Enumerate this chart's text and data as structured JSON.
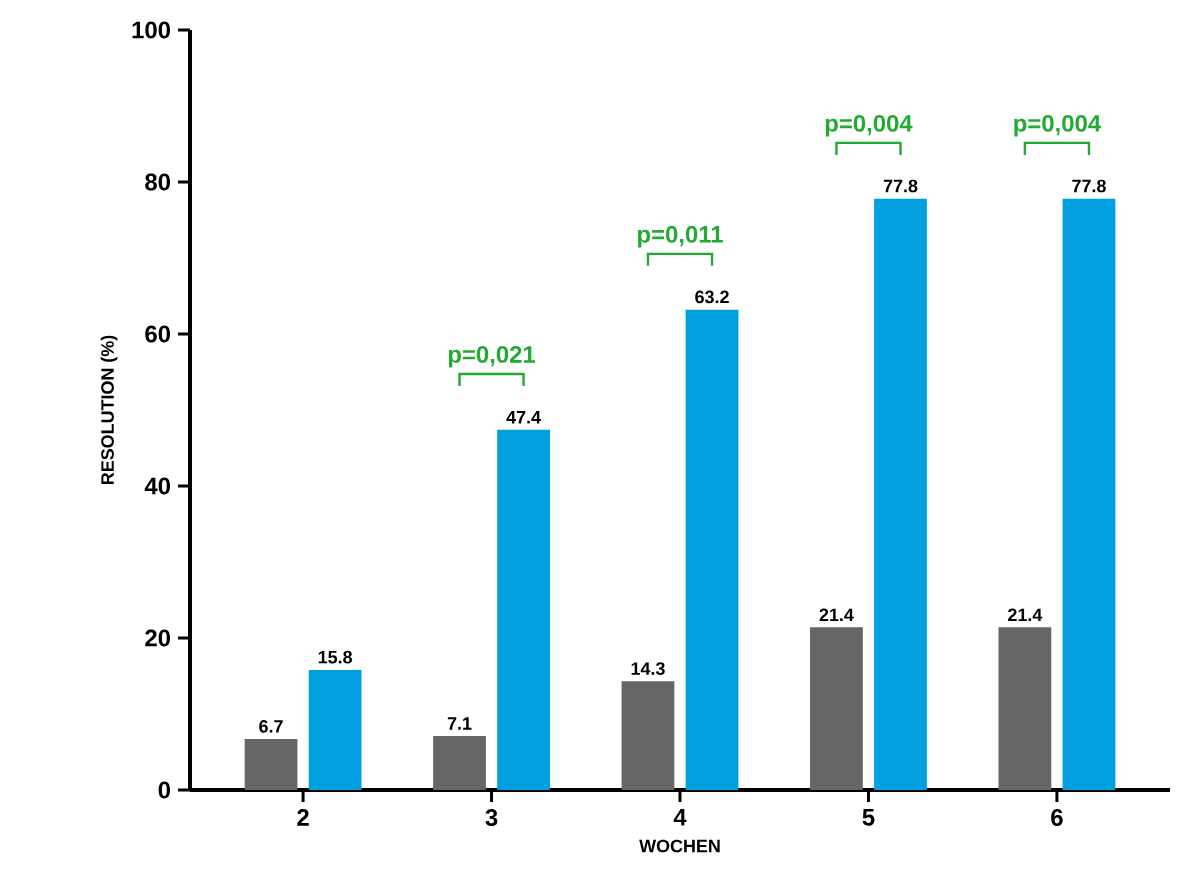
{
  "chart_data": {
    "type": "bar",
    "xlabel": "WOCHEN",
    "ylabel": "RESOLUTION (%)",
    "categories": [
      "2",
      "3",
      "4",
      "5",
      "6"
    ],
    "series": [
      {
        "color": "#666666",
        "values": [
          6.7,
          7.1,
          14.3,
          21.4,
          21.4
        ]
      },
      {
        "color": "#00a0e0",
        "values": [
          15.8,
          47.4,
          63.2,
          77.8,
          77.8
        ]
      }
    ],
    "ylim": [
      0,
      100
    ],
    "yticks": [
      0,
      20,
      40,
      60,
      80,
      100
    ],
    "data_labels": true,
    "grid": false,
    "annotations": [
      "p=0,021",
      "p=0,011",
      "p=0,004",
      "p=0,004"
    ]
  }
}
